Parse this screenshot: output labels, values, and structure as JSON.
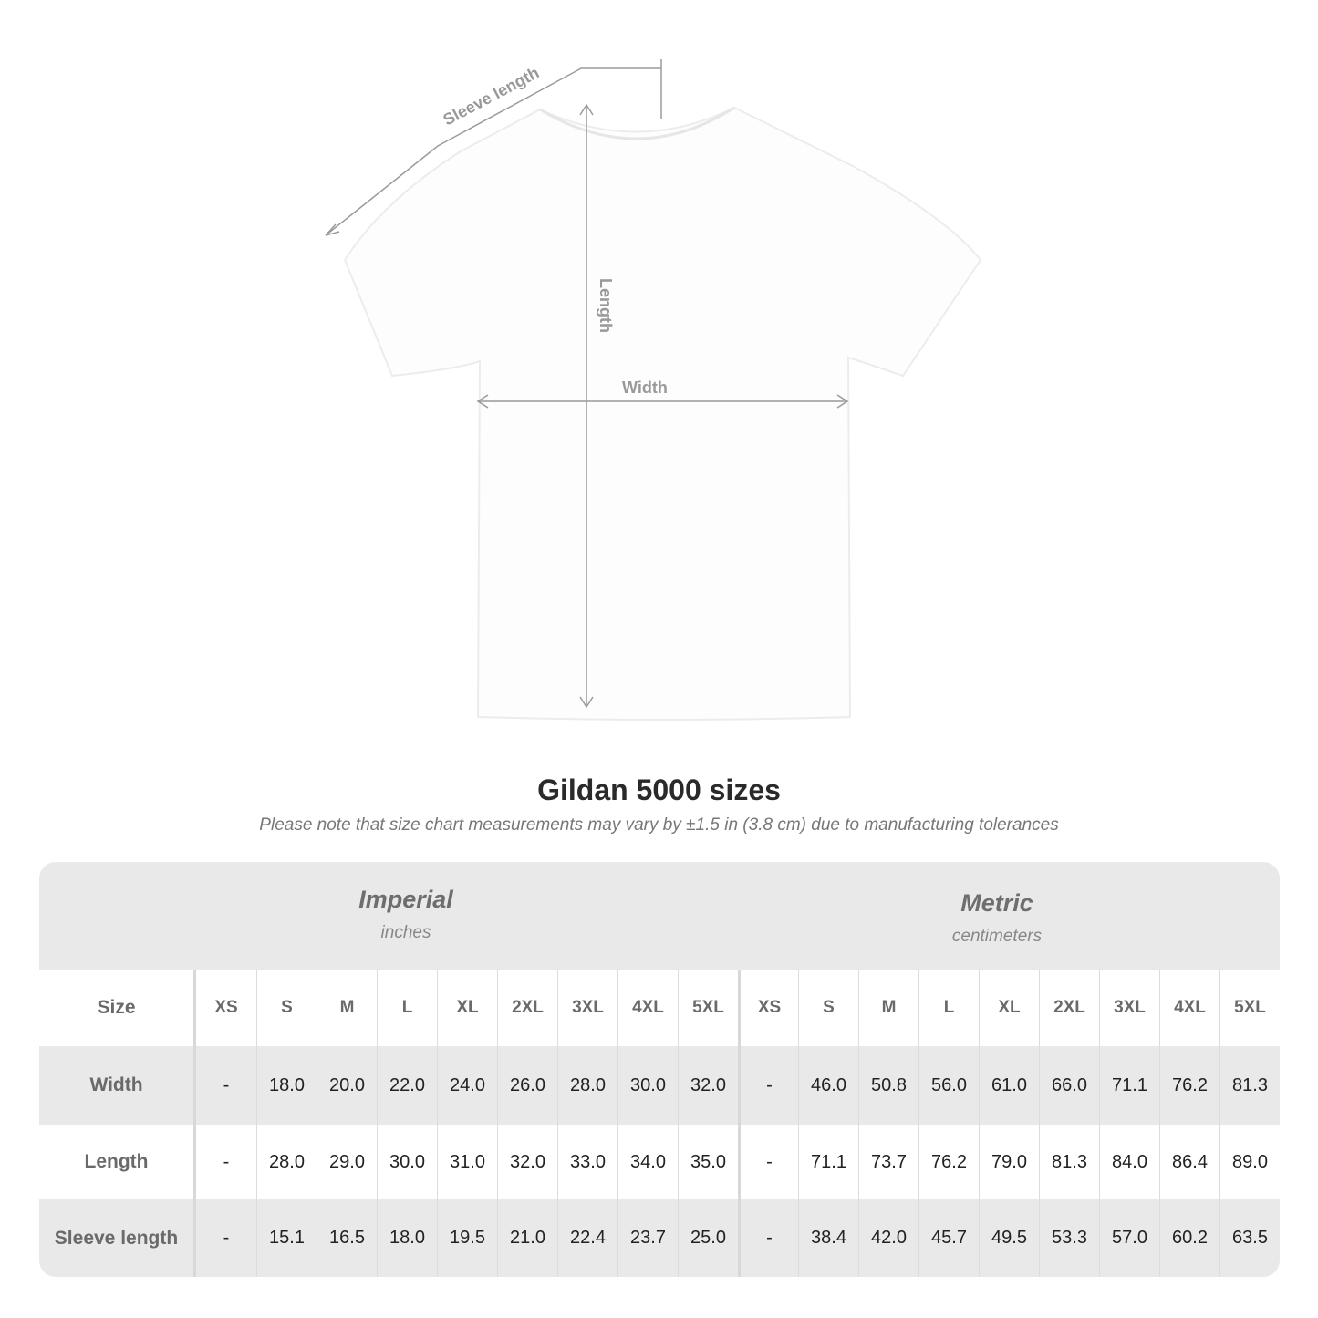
{
  "diagram": {
    "labels": {
      "sleeve": "Sleeve length",
      "length": "Length",
      "width": "Width"
    },
    "shirt_color": "#ffffff",
    "line_color": "#9a9a9a"
  },
  "title": "Gildan 5000 sizes",
  "note": "Please note that size chart measurements may vary by ±1.5 in (3.8 cm) due to manufacturing tolerances",
  "table": {
    "imperial": {
      "name": "Imperial",
      "unit": "inches"
    },
    "metric": {
      "name": "Metric",
      "unit": "centimeters"
    },
    "size_label": "Size",
    "sizes": [
      "XS",
      "S",
      "M",
      "L",
      "XL",
      "2XL",
      "3XL",
      "4XL",
      "5XL"
    ],
    "rows": [
      {
        "label": "Width",
        "imperial": [
          "-",
          "18.0",
          "20.0",
          "22.0",
          "24.0",
          "26.0",
          "28.0",
          "30.0",
          "32.0"
        ],
        "metric": [
          "-",
          "46.0",
          "50.8",
          "56.0",
          "61.0",
          "66.0",
          "71.1",
          "76.2",
          "81.3"
        ]
      },
      {
        "label": "Length",
        "imperial": [
          "-",
          "28.0",
          "29.0",
          "30.0",
          "31.0",
          "32.0",
          "33.0",
          "34.0",
          "35.0"
        ],
        "metric": [
          "-",
          "71.1",
          "73.7",
          "76.2",
          "79.0",
          "81.3",
          "84.0",
          "86.4",
          "89.0"
        ]
      },
      {
        "label": "Sleeve length",
        "imperial": [
          "-",
          "15.1",
          "16.5",
          "18.0",
          "19.5",
          "21.0",
          "22.4",
          "23.7",
          "25.0"
        ],
        "metric": [
          "-",
          "38.4",
          "42.0",
          "45.7",
          "49.5",
          "53.3",
          "57.0",
          "60.2",
          "63.5"
        ]
      }
    ]
  }
}
